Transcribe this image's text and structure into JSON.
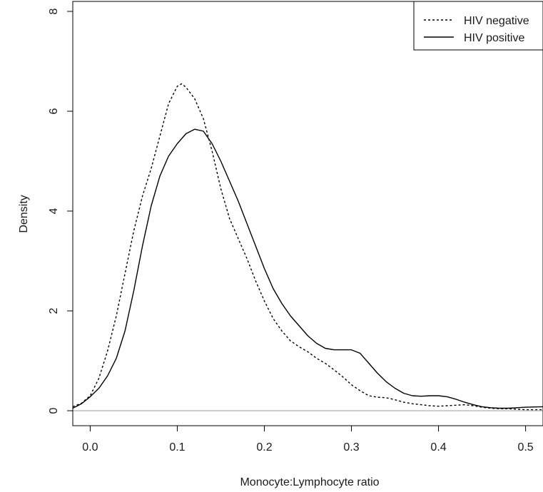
{
  "chart_data": {
    "type": "line",
    "title": "",
    "xlabel": "Monocyte:Lymphocyte ratio",
    "ylabel": "Density",
    "xlim": [
      -0.02,
      0.52
    ],
    "ylim": [
      -0.3,
      8.2
    ],
    "x_ticks": [
      0.0,
      0.1,
      0.2,
      0.3,
      0.4,
      0.5
    ],
    "x_tick_labels": [
      "0.0",
      "0.1",
      "0.2",
      "0.3",
      "0.4",
      "0.5"
    ],
    "y_ticks": [
      0,
      2,
      4,
      6,
      8
    ],
    "y_tick_labels": [
      "0",
      "2",
      "4",
      "6",
      "8"
    ],
    "baseline": 0,
    "baseline_color": "#bdbdbd",
    "legend": {
      "position": "top-right"
    },
    "series": [
      {
        "name": "HIV negative",
        "line_style": "dotted",
        "color": "#000000",
        "points": [
          [
            -0.02,
            0.08
          ],
          [
            -0.01,
            0.15
          ],
          [
            0.0,
            0.3
          ],
          [
            0.01,
            0.65
          ],
          [
            0.02,
            1.2
          ],
          [
            0.03,
            1.9
          ],
          [
            0.04,
            2.75
          ],
          [
            0.05,
            3.6
          ],
          [
            0.06,
            4.3
          ],
          [
            0.07,
            4.85
          ],
          [
            0.08,
            5.5
          ],
          [
            0.09,
            6.15
          ],
          [
            0.1,
            6.5
          ],
          [
            0.105,
            6.55
          ],
          [
            0.11,
            6.48
          ],
          [
            0.12,
            6.25
          ],
          [
            0.13,
            5.85
          ],
          [
            0.14,
            5.2
          ],
          [
            0.15,
            4.45
          ],
          [
            0.16,
            3.85
          ],
          [
            0.17,
            3.45
          ],
          [
            0.18,
            3.05
          ],
          [
            0.19,
            2.6
          ],
          [
            0.2,
            2.2
          ],
          [
            0.21,
            1.85
          ],
          [
            0.22,
            1.6
          ],
          [
            0.23,
            1.4
          ],
          [
            0.24,
            1.28
          ],
          [
            0.25,
            1.18
          ],
          [
            0.26,
            1.05
          ],
          [
            0.27,
            0.95
          ],
          [
            0.28,
            0.82
          ],
          [
            0.29,
            0.68
          ],
          [
            0.3,
            0.52
          ],
          [
            0.31,
            0.4
          ],
          [
            0.32,
            0.3
          ],
          [
            0.33,
            0.27
          ],
          [
            0.34,
            0.26
          ],
          [
            0.35,
            0.22
          ],
          [
            0.36,
            0.17
          ],
          [
            0.37,
            0.14
          ],
          [
            0.38,
            0.12
          ],
          [
            0.39,
            0.1
          ],
          [
            0.4,
            0.09
          ],
          [
            0.41,
            0.1
          ],
          [
            0.42,
            0.11
          ],
          [
            0.43,
            0.12
          ],
          [
            0.44,
            0.1
          ],
          [
            0.45,
            0.07
          ],
          [
            0.46,
            0.05
          ],
          [
            0.47,
            0.04
          ],
          [
            0.48,
            0.04
          ],
          [
            0.49,
            0.03
          ],
          [
            0.5,
            0.02
          ],
          [
            0.52,
            0.02
          ]
        ]
      },
      {
        "name": "HIV positive",
        "line_style": "solid",
        "color": "#000000",
        "points": [
          [
            -0.02,
            0.05
          ],
          [
            -0.01,
            0.14
          ],
          [
            0.0,
            0.28
          ],
          [
            0.01,
            0.45
          ],
          [
            0.02,
            0.7
          ],
          [
            0.03,
            1.05
          ],
          [
            0.04,
            1.6
          ],
          [
            0.05,
            2.4
          ],
          [
            0.06,
            3.3
          ],
          [
            0.07,
            4.1
          ],
          [
            0.08,
            4.7
          ],
          [
            0.09,
            5.1
          ],
          [
            0.1,
            5.35
          ],
          [
            0.11,
            5.55
          ],
          [
            0.12,
            5.64
          ],
          [
            0.13,
            5.6
          ],
          [
            0.14,
            5.35
          ],
          [
            0.15,
            5.0
          ],
          [
            0.16,
            4.6
          ],
          [
            0.17,
            4.2
          ],
          [
            0.18,
            3.75
          ],
          [
            0.19,
            3.3
          ],
          [
            0.2,
            2.85
          ],
          [
            0.21,
            2.45
          ],
          [
            0.22,
            2.15
          ],
          [
            0.23,
            1.9
          ],
          [
            0.24,
            1.7
          ],
          [
            0.25,
            1.5
          ],
          [
            0.26,
            1.35
          ],
          [
            0.27,
            1.25
          ],
          [
            0.28,
            1.22
          ],
          [
            0.29,
            1.22
          ],
          [
            0.3,
            1.22
          ],
          [
            0.31,
            1.15
          ],
          [
            0.32,
            0.95
          ],
          [
            0.33,
            0.75
          ],
          [
            0.34,
            0.58
          ],
          [
            0.35,
            0.45
          ],
          [
            0.36,
            0.35
          ],
          [
            0.37,
            0.3
          ],
          [
            0.38,
            0.29
          ],
          [
            0.39,
            0.3
          ],
          [
            0.4,
            0.3
          ],
          [
            0.41,
            0.28
          ],
          [
            0.42,
            0.23
          ],
          [
            0.43,
            0.17
          ],
          [
            0.44,
            0.12
          ],
          [
            0.45,
            0.08
          ],
          [
            0.46,
            0.06
          ],
          [
            0.47,
            0.05
          ],
          [
            0.48,
            0.05
          ],
          [
            0.49,
            0.06
          ],
          [
            0.5,
            0.07
          ],
          [
            0.52,
            0.08
          ]
        ]
      }
    ]
  }
}
